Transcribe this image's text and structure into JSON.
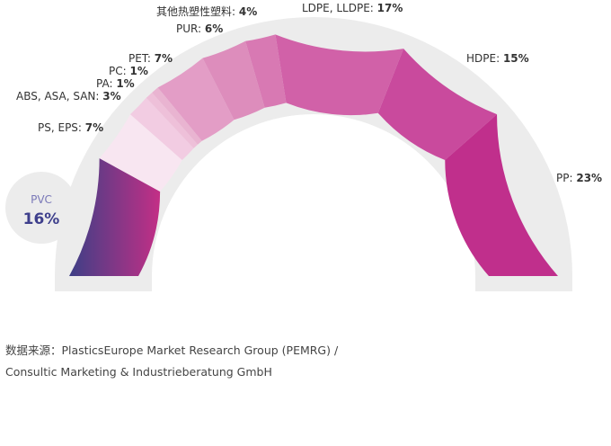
{
  "chart_data": {
    "type": "pie",
    "layout": "semicircular gauge (half donut)",
    "unit": "%",
    "slices": [
      {
        "label": "PVC",
        "value": 16,
        "color": "#8e3a8e",
        "gradient": [
          "#3e3f86",
          "#c32f86"
        ]
      },
      {
        "label": "PS, EPS",
        "value": 7,
        "color": "#f8e6f1"
      },
      {
        "label": "ABS, ASA, SAN",
        "value": 3,
        "color": "#f2cce2"
      },
      {
        "label": "PA",
        "value": 1,
        "color": "#eec0d9"
      },
      {
        "label": "PC",
        "value": 1,
        "color": "#e9b4d1"
      },
      {
        "label": "PET",
        "value": 7,
        "color": "#e39dc6"
      },
      {
        "label": "PUR",
        "value": 6,
        "color": "#dd8dbc"
      },
      {
        "label": "其他热塑性塑料",
        "value": 4,
        "color": "#d879b3"
      },
      {
        "label": "LDPE, LLDPE",
        "value": 17,
        "color": "#d161a8"
      },
      {
        "label": "HDPE",
        "value": 15,
        "color": "#c94a9d"
      },
      {
        "label": "PP",
        "value": 23,
        "color": "#c02f8c"
      }
    ]
  },
  "pvc_callout": {
    "name": "PVC",
    "value": "16%"
  },
  "labels": [
    {
      "text": "PS, EPS: ",
      "pct": "7%"
    },
    {
      "text": "ABS, ASA, SAN: ",
      "pct": "3%"
    },
    {
      "text": "PA: ",
      "pct": "1%"
    },
    {
      "text": "PC: ",
      "pct": "1%"
    },
    {
      "text": "PET: ",
      "pct": "7%"
    },
    {
      "text": "PUR: ",
      "pct": "6%"
    },
    {
      "text": "其他热塑性塑料: ",
      "pct": "4%"
    },
    {
      "text": "LDPE, LLDPE: ",
      "pct": "17%"
    },
    {
      "text": "HDPE: ",
      "pct": "15%"
    },
    {
      "text": "PP: ",
      "pct": "23%"
    }
  ],
  "source": {
    "line1": "数据来源：PlasticsEurope Market Research Group (PEMRG) /",
    "line2": "Consultic Marketing & Industrieberatung GmbH"
  },
  "colors": {
    "track": "#ececec",
    "pvc_callout_bg": "#ececec",
    "label_text": "#333333",
    "pvc_name": "#7a78b8",
    "pvc_value": "#3e3f8c"
  }
}
